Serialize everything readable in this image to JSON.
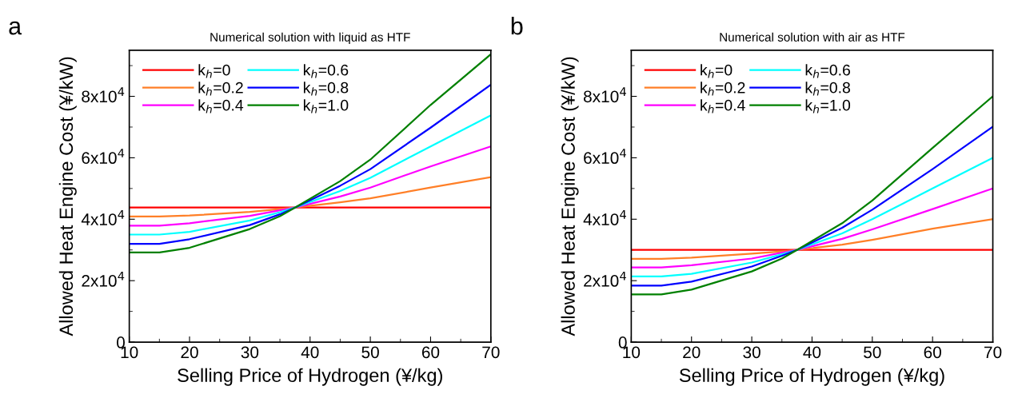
{
  "chart_data": [
    {
      "type": "line",
      "title": "Numerical solution with liquid as HTF",
      "xlabel": "Selling Price of Hydrogen (¥/kg)",
      "ylabel": "Allowed Heat Engine Cost (¥/kW)",
      "annotations": [
        "a"
      ],
      "x": [
        10,
        15,
        20,
        30,
        35,
        37.5,
        45,
        50,
        60,
        70
      ],
      "xlim": [
        10,
        70
      ],
      "xticks": [
        10,
        20,
        30,
        40,
        50,
        60,
        70
      ],
      "ylim": [
        0,
        95000
      ],
      "yticks": [
        {
          "value": 0,
          "label": "0"
        },
        {
          "value": 20000,
          "label": "2x10$^{4}$"
        },
        {
          "value": 40000,
          "label": "4x10$^{4}$"
        },
        {
          "value": 60000,
          "label": "6x10$^{4}$"
        },
        {
          "value": 80000,
          "label": "8x10$^{4}$"
        }
      ],
      "legend": "top left",
      "grid": false,
      "marker": "none",
      "line_style": "solid",
      "series": [
        {
          "name": "k$_{h}$=0",
          "color": "#ff0000",
          "values": [
            43800,
            43800,
            43800,
            43800,
            43800,
            43800,
            43800,
            43800,
            43800,
            43800
          ]
        },
        {
          "name": "k$_{h}$=0.2",
          "color": "#ff7f27",
          "values": [
            40900,
            40900,
            41200,
            42400,
            43300,
            43800,
            45500,
            46800,
            50300,
            53700
          ]
        },
        {
          "name": "k$_{h}$=0.4",
          "color": "#ff00ff",
          "values": [
            37900,
            37900,
            38700,
            41100,
            42900,
            43800,
            47400,
            50300,
            57200,
            63700
          ]
        },
        {
          "name": "k$_{h}$=0.6",
          "color": "#00ffff",
          "values": [
            35000,
            35000,
            35900,
            39600,
            42300,
            43800,
            49200,
            53500,
            63700,
            73800
          ]
        },
        {
          "name": "k$_{h}$=0.8",
          "color": "#0000ff",
          "values": [
            32000,
            32000,
            33500,
            38100,
            41600,
            43800,
            50900,
            56300,
            69800,
            83800
          ]
        },
        {
          "name": "k$_{h}$=1.0",
          "color": "#008000",
          "values": [
            29200,
            29200,
            30700,
            36800,
            41000,
            43800,
            52400,
            59400,
            77200,
            93700
          ]
        }
      ]
    },
    {
      "type": "line",
      "title": "Numerical solution with air as HTF",
      "xlabel": "Selling Price of Hydrogen (¥/kg)",
      "ylabel": "Allowed Heat Engine Cost (¥/kW)",
      "annotations": [
        "b"
      ],
      "x": [
        10,
        15,
        20,
        30,
        35,
        37.5,
        45,
        50,
        60,
        70
      ],
      "xlim": [
        10,
        70
      ],
      "xticks": [
        10,
        20,
        30,
        40,
        50,
        60,
        70
      ],
      "ylim": [
        0,
        95000
      ],
      "yticks": [
        {
          "value": 0,
          "label": "0"
        },
        {
          "value": 20000,
          "label": "2x10$^{4}$"
        },
        {
          "value": 40000,
          "label": "4x10$^{4}$"
        },
        {
          "value": 60000,
          "label": "6x10$^{4}$"
        },
        {
          "value": 80000,
          "label": "8x10$^{4}$"
        }
      ],
      "legend": "top left",
      "grid": false,
      "marker": "none",
      "line_style": "solid",
      "series": [
        {
          "name": "k$_{h}$=0",
          "color": "#ff0000",
          "values": [
            30000,
            30000,
            30000,
            30000,
            30000,
            30000,
            30000,
            30000,
            30000,
            30000
          ]
        },
        {
          "name": "k$_{h}$=0.2",
          "color": "#ff7f27",
          "values": [
            27100,
            27100,
            27500,
            28800,
            29500,
            30000,
            31700,
            33300,
            36900,
            40000
          ]
        },
        {
          "name": "k$_{h}$=0.4",
          "color": "#ff00ff",
          "values": [
            24300,
            24300,
            25000,
            27200,
            29100,
            30000,
            33600,
            36700,
            43300,
            50000
          ]
        },
        {
          "name": "k$_{h}$=0.6",
          "color": "#00ffff",
          "values": [
            21400,
            21400,
            22200,
            25900,
            28600,
            30000,
            35400,
            40000,
            50000,
            60000
          ]
        },
        {
          "name": "k$_{h}$=0.8",
          "color": "#0000ff",
          "values": [
            18400,
            18400,
            19700,
            24600,
            28100,
            30000,
            37200,
            43100,
            56300,
            70100
          ]
        },
        {
          "name": "k$_{h}$=1.0",
          "color": "#008000",
          "values": [
            15500,
            15500,
            17100,
            23000,
            27200,
            30000,
            38700,
            46100,
            63200,
            80000
          ]
        }
      ]
    }
  ]
}
